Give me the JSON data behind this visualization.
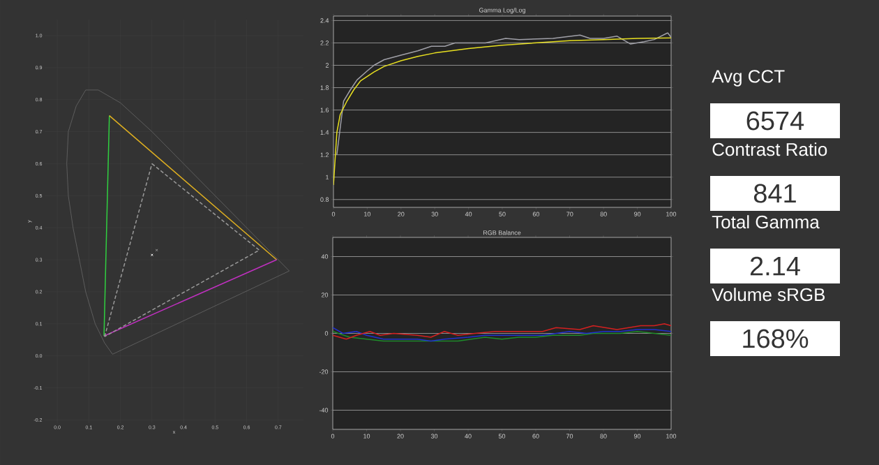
{
  "chart_data": [
    {
      "type": "line",
      "xlabel": "x",
      "ylabel": "y",
      "xlim": [
        -0.04,
        0.78
      ],
      "ylim": [
        -0.21,
        1.05
      ],
      "xticks": [
        {
          "value": 0,
          "label": "0.0"
        },
        0.1,
        0.2,
        0.3,
        0.4,
        0.5,
        0.6,
        0.7
      ],
      "yticks": [
        -0.2,
        -0.1,
        {
          "value": 0,
          "label": "0.0"
        },
        0.1,
        0.2,
        0.3,
        0.4,
        0.5,
        0.6,
        0.7,
        0.8,
        0.9,
        {
          "value": 1,
          "label": "1.0"
        }
      ],
      "grid": true,
      "series": [
        {
          "color": "#6e6e6e",
          "x": [
            0.175,
            0.15,
            0.12,
            0.09,
            0.07,
            0.05,
            0.035,
            0.03,
            0.035,
            0.06,
            0.09,
            0.13,
            0.2,
            0.3,
            0.4,
            0.5,
            0.6,
            0.7,
            0.735
          ],
          "values": [
            0.005,
            0.04,
            0.1,
            0.2,
            0.3,
            0.4,
            0.5,
            0.6,
            0.7,
            0.78,
            0.83,
            0.83,
            0.79,
            0.7,
            0.6,
            0.5,
            0.4,
            0.3,
            0.265
          ]
        },
        {
          "color": "#6e6e6e",
          "x": [
            0.735,
            0.175
          ],
          "values": [
            0.265,
            0.005
          ]
        },
        {
          "color": "#30d040",
          "x": [
            0.148,
            0.165
          ],
          "values": [
            0.062,
            0.75
          ]
        },
        {
          "color": "#e0b020",
          "x": [
            0.165,
            0.695
          ],
          "values": [
            0.75,
            0.3
          ]
        },
        {
          "color": "#c030c0",
          "x": [
            0.695,
            0.148
          ],
          "values": [
            0.3,
            0.062
          ]
        },
        {
          "color": "#9a9a9a",
          "line_style": "dashed",
          "x": [
            0.3,
            0.64,
            0.15
          ],
          "values": [
            0.6,
            0.33,
            0.06
          ]
        },
        {
          "color": "#9a9a9a",
          "line_style": "dashed",
          "x": [
            0.15,
            0.3
          ],
          "values": [
            0.06,
            0.6
          ]
        },
        {
          "type": "scatter",
          "marker": "cross",
          "color": "#ffffff",
          "x": [
            0.3
          ],
          "values": [
            0.315
          ]
        },
        {
          "type": "scatter",
          "marker": "cross",
          "color": "#9a9a9a",
          "x": [
            0.315
          ],
          "values": [
            0.33
          ]
        }
      ]
    },
    {
      "type": "line",
      "title": "Gamma Log/Log",
      "xlim": [
        0,
        100
      ],
      "ylim": [
        0.73,
        2.44
      ],
      "xticks": [
        0,
        10,
        20,
        30,
        40,
        50,
        60,
        70,
        80,
        90,
        100
      ],
      "yticks": [
        0.8,
        1,
        1.2,
        1.4,
        1.6,
        1.8,
        2,
        2.2,
        2.4
      ],
      "grid": "y",
      "series": [
        {
          "color": "#a0a0a8",
          "x": [
            1,
            3,
            5,
            7,
            10,
            12,
            15,
            20,
            25,
            29,
            33,
            36,
            45,
            51,
            55,
            65,
            73,
            76,
            80,
            84,
            88,
            92,
            95,
            99,
            100
          ],
          "values": [
            1.2,
            1.68,
            1.78,
            1.87,
            1.95,
            2.0,
            2.05,
            2.09,
            2.13,
            2.17,
            2.17,
            2.2,
            2.2,
            2.24,
            2.23,
            2.24,
            2.27,
            2.24,
            2.24,
            2.26,
            2.19,
            2.21,
            2.23,
            2.29,
            2.25
          ]
        },
        {
          "color": "#e8e020",
          "x": [
            0,
            1,
            2,
            4,
            6,
            8,
            12,
            15,
            20,
            25,
            30,
            40,
            50,
            60,
            70,
            80,
            90,
            100
          ],
          "values": [
            0.93,
            1.4,
            1.56,
            1.68,
            1.78,
            1.86,
            1.94,
            1.99,
            2.04,
            2.08,
            2.11,
            2.15,
            2.18,
            2.2,
            2.22,
            2.23,
            2.24,
            2.245
          ]
        }
      ]
    },
    {
      "type": "line",
      "title": "RGB Balance",
      "xlim": [
        0,
        100
      ],
      "ylim": [
        -50,
        50
      ],
      "xticks": [
        0,
        10,
        20,
        30,
        40,
        50,
        60,
        70,
        80,
        90,
        100
      ],
      "yticks": [
        -40,
        -20,
        0,
        20,
        40
      ],
      "grid": "y",
      "series": [
        {
          "color": "#1e8c2a",
          "x": [
            0,
            5,
            10,
            15,
            20,
            30,
            37,
            45,
            50,
            55,
            60,
            65,
            73,
            77,
            85,
            90,
            100
          ],
          "values": [
            1,
            -2,
            -3,
            -4,
            -4,
            -4,
            -4,
            -2,
            -3,
            -2,
            -2,
            -1,
            -1,
            0,
            0,
            1,
            -1
          ]
        },
        {
          "color": "#2030d0",
          "x": [
            0,
            3,
            7,
            10,
            15,
            20,
            25,
            29,
            33,
            40,
            45,
            55,
            62,
            66,
            70,
            75,
            80,
            85,
            90,
            95,
            100
          ],
          "values": [
            3,
            0,
            1,
            -1,
            -3,
            -3,
            -3,
            -4,
            -3,
            -2,
            -1,
            -1,
            -1,
            0,
            1,
            0,
            1,
            1,
            2,
            2,
            1
          ]
        },
        {
          "color": "#d42020",
          "x": [
            0,
            4,
            7,
            11,
            14,
            18,
            25,
            29,
            33,
            37,
            42,
            48,
            55,
            62,
            66,
            73,
            77,
            84,
            91,
            95,
            98,
            100
          ],
          "values": [
            -1,
            -3,
            -1,
            1,
            -1,
            0,
            -1,
            -2,
            1,
            -1,
            0,
            1,
            1,
            1,
            3,
            2,
            4,
            2,
            4,
            4,
            5,
            4
          ]
        }
      ]
    },
    {
      "type": "other",
      "annotations": [
        "Avg CCT",
        "6574",
        "Contrast Ratio",
        "841",
        "Total Gamma",
        "2.14",
        "Volume sRGB",
        "168%"
      ]
    }
  ]
}
